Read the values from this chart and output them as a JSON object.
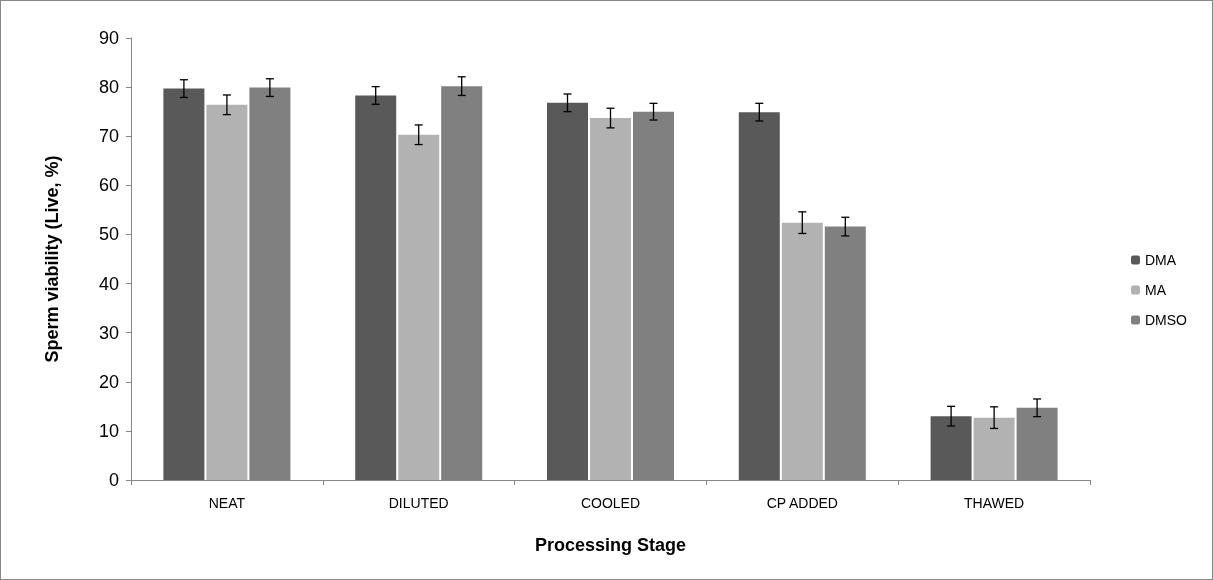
{
  "chart_data": {
    "type": "bar",
    "xlabel": "Processing Stage",
    "ylabel": "Sperm viability (Live, %)",
    "categories": [
      "NEAT",
      "DILUTED",
      "COOLED",
      "CP ADDED",
      "THAWED"
    ],
    "series": [
      {
        "name": "DMA",
        "color": "#595959",
        "values": [
          79.7,
          78.3,
          76.8,
          74.9,
          13.0
        ],
        "errors": [
          1.8,
          1.8,
          1.8,
          1.8,
          2.0
        ]
      },
      {
        "name": "MA",
        "color": "#b2b2b2",
        "values": [
          76.4,
          70.3,
          73.7,
          52.4,
          12.7
        ],
        "errors": [
          2.0,
          2.0,
          2.0,
          2.2,
          2.2
        ]
      },
      {
        "name": "DMSO",
        "color": "#808080",
        "values": [
          79.9,
          80.2,
          75.0,
          51.6,
          14.7
        ],
        "errors": [
          1.8,
          1.9,
          1.7,
          1.9,
          1.8
        ]
      }
    ],
    "ylim": [
      0,
      90
    ],
    "yticks": [
      0,
      10,
      20,
      30,
      40,
      50,
      60,
      70,
      80,
      90
    ],
    "grid": false,
    "legend": "right"
  }
}
